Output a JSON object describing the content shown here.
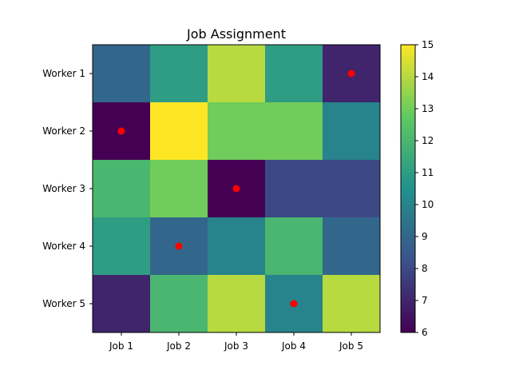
{
  "chart_data": {
    "type": "heatmap",
    "title": "Job Assignment",
    "x_categories": [
      "Job 1",
      "Job 2",
      "Job 3",
      "Job 4",
      "Job 5"
    ],
    "y_categories": [
      "Worker 1",
      "Worker 2",
      "Worker 3",
      "Worker 4",
      "Worker 5"
    ],
    "values": [
      [
        9,
        11,
        14,
        11,
        7
      ],
      [
        6,
        15,
        13,
        13,
        10
      ],
      [
        12,
        13,
        6,
        8,
        8
      ],
      [
        11,
        9,
        10,
        12,
        9
      ],
      [
        7,
        12,
        14,
        10,
        14
      ]
    ],
    "assignments": [
      {
        "worker": "Worker 1",
        "job": "Job 5"
      },
      {
        "worker": "Worker 2",
        "job": "Job 1"
      },
      {
        "worker": "Worker 3",
        "job": "Job 3"
      },
      {
        "worker": "Worker 4",
        "job": "Job 2"
      },
      {
        "worker": "Worker 5",
        "job": "Job 4"
      }
    ],
    "marker_color": "#ff0000",
    "colormap": "viridis",
    "colorbar": {
      "vmin": 6,
      "vmax": 15,
      "ticks": [
        6,
        7,
        8,
        9,
        10,
        11,
        12,
        13,
        14,
        15
      ]
    }
  }
}
